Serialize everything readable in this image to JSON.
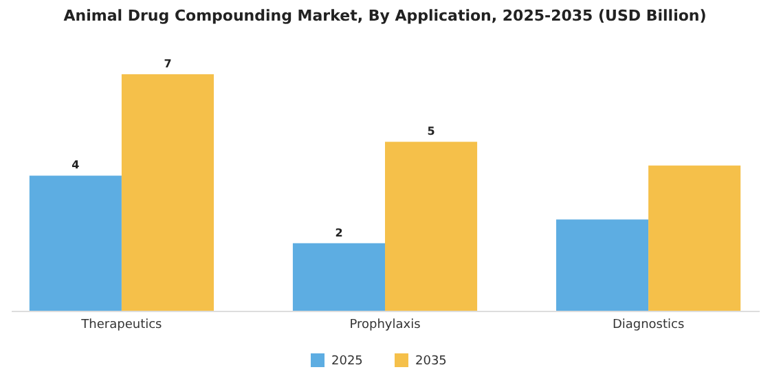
{
  "chart_data": {
    "type": "bar",
    "title": "Animal Drug Compounding Market, By Application, 2025-2035 (USD Billion)",
    "categories": [
      "Therapeutics",
      "Prophylaxis",
      "Diagnostics"
    ],
    "legend": "bottom",
    "tick_labels": "x",
    "series": [
      {
        "name": "2025",
        "color": "#5dade2",
        "values": [
          4,
          2,
          2.7
        ],
        "value_labels": [
          "4",
          "2",
          null
        ]
      },
      {
        "name": "2035",
        "color": "#f5c04a",
        "values": [
          7,
          5,
          4.3
        ],
        "value_labels": [
          "7",
          "5",
          null
        ]
      }
    ]
  }
}
